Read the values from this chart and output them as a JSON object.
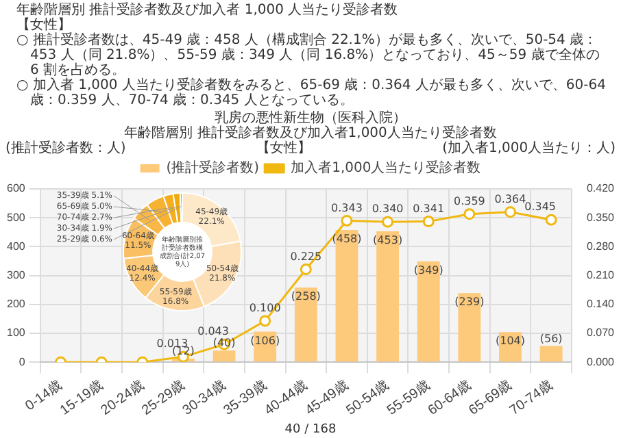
{
  "chart_data": [
    {
      "type": "bar",
      "title": "乳房の悪性新生物（医科入院）",
      "subtitle": "年齢階層別 推計受診者数及び加入者1,000人当たり受診者数",
      "ylabel": "(推計受診者数：人)",
      "y2label": "(加入者1,000人当たり：人)",
      "categories": [
        "0-14歳",
        "15-19歳",
        "20-24歳",
        "25-29歳",
        "30-34歳",
        "35-39歳",
        "40-44歳",
        "45-49歳",
        "50-54歳",
        "55-59歳",
        "60-64歳",
        "65-69歳",
        "70-74歳"
      ],
      "series": [
        {
          "name": "(推計受診者数)",
          "color": "#fdc97a",
          "values": [
            0,
            0,
            0,
            12,
            40,
            106,
            258,
            458,
            453,
            349,
            239,
            104,
            56
          ],
          "value_labels": [
            null,
            null,
            null,
            "(12)",
            "(40)",
            "(106)",
            "(258)",
            "(458)",
            "(453)",
            "(349)",
            "(239)",
            "(104)",
            "(56)"
          ]
        },
        {
          "name": "加入者1,000人当たり受診者数",
          "type": "line",
          "axis": "y2",
          "color": "#f0b810",
          "values": [
            0,
            0,
            0,
            0.013,
            0.043,
            0.1,
            0.225,
            0.343,
            0.34,
            0.341,
            0.359,
            0.364,
            0.345
          ],
          "value_labels": [
            null,
            null,
            null,
            "0.013",
            "0.043",
            "0.100",
            "0.225",
            "0.343",
            "0.340",
            "0.341",
            "0.359",
            "0.364",
            "0.345"
          ]
        }
      ],
      "ylim": [
        0,
        600
      ],
      "yticks": [
        0,
        100,
        200,
        300,
        400,
        500,
        600
      ],
      "y2lim": [
        0,
        0.42
      ],
      "y2ticks": [
        {
          "value": 0,
          "label": "0.000"
        },
        {
          "value": 0.07,
          "label": "0.070"
        },
        {
          "value": 0.14,
          "label": "0.140"
        },
        {
          "value": 0.21,
          "label": "0.210"
        },
        {
          "value": 0.28,
          "label": "0.280"
        },
        {
          "value": 0.35,
          "label": "0.350"
        },
        {
          "value": 0.42,
          "label": "0.420"
        }
      ],
      "grid": true,
      "legend": "top",
      "marker": "circle",
      "annotations": [
        "年齢階層別 推計受診者数及び加入者 1,000 人当たり受診者数",
        "【女性】",
        "○ 推計受診者数は、45-49 歳：458 人（構成割合 22.1%）が最も多く、次いで、50-54 歳：453 人（同 21.8%）、55-59 歳：349 人（同 16.8%）となっており、45～59 歳で全体の 6 割を占める。",
        "○ 加入者 1,000 人当たり受診者数をみると、65-69 歳：0.364 人が最も多く、次いで、60-64 歳：0.359 人、70-74 歳：0.345 人となっている。",
        "【女性】",
        "40 / 168"
      ]
    },
    {
      "type": "donut",
      "title": "年齢階層別推計受診者数構成割合(計2,079人)",
      "categories": [
        "45-49歳",
        "50-54歳",
        "55-59歳",
        "40-44歳",
        "60-64歳",
        "35-39歳",
        "65-69歳",
        "70-74歳",
        "30-34歳",
        "25-29歳"
      ],
      "values": [
        22.1,
        21.8,
        16.8,
        12.4,
        11.5,
        5.1,
        5.0,
        2.7,
        1.9,
        0.6
      ],
      "value_labels": [
        "22.1%",
        "21.8%",
        "16.8%",
        "12.4%",
        "11.5%",
        "5.1%",
        "5.0%",
        "2.7%",
        "1.9%",
        "0.6%"
      ],
      "colors": [
        "#fde8c8",
        "#fde0b8",
        "#fcd49c",
        "#fbc878",
        "#fabf62",
        "#f9b748",
        "#f7b232",
        "#f5ae1c",
        "#f0aa08",
        "#e6a200"
      ]
    }
  ]
}
